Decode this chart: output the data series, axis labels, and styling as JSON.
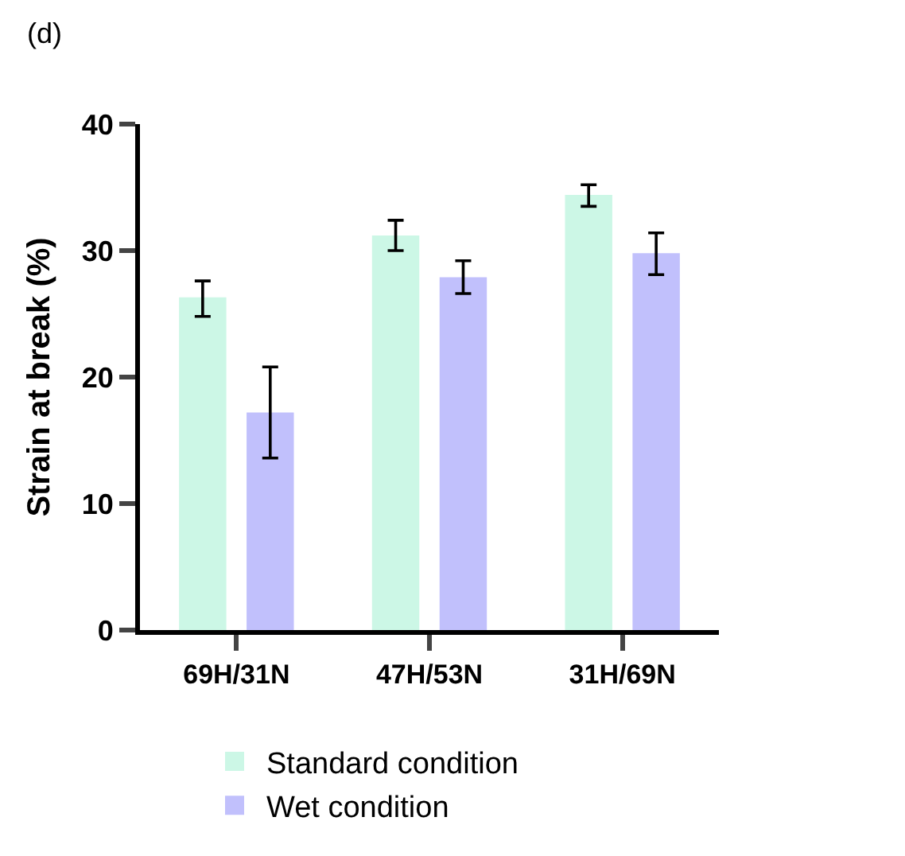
{
  "chart_data": {
    "type": "bar",
    "title": "(d)",
    "ylabel": "Strain at break (%)",
    "categories": [
      "69H/31N",
      "47H/53N",
      "31H/69N"
    ],
    "series": [
      {
        "name": "Standard condition",
        "color": "#ccf7e6",
        "values": [
          26.3,
          31.2,
          34.4
        ],
        "errors": [
          [
            24.8,
            27.6
          ],
          [
            30.0,
            32.4
          ],
          [
            33.5,
            35.2
          ]
        ]
      },
      {
        "name": "Wet condition",
        "color": "#c1c0fc",
        "values": [
          17.2,
          27.9,
          29.8
        ],
        "errors": [
          [
            13.6,
            20.8
          ],
          [
            26.6,
            29.2
          ],
          [
            28.1,
            31.4
          ]
        ]
      }
    ],
    "ylim": [
      0,
      40
    ],
    "yticks": [
      0,
      10,
      20,
      30,
      40
    ],
    "legend": "bottom"
  }
}
